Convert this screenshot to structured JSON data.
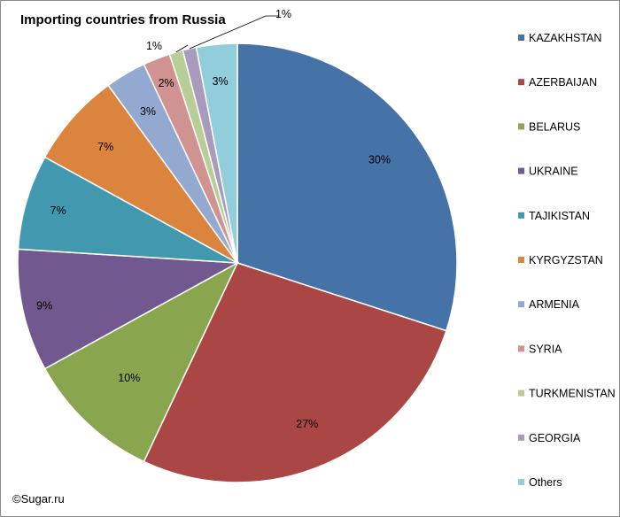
{
  "title": "Importing countries from Russia",
  "copyright": "©Sugar.ru",
  "chart_data": {
    "type": "pie",
    "title": "Importing countries from Russia",
    "legend_position": "right",
    "start_angle": "12 o'clock",
    "direction": "clockwise",
    "slices": [
      {
        "name": "KAZAKHSTAN",
        "value": 30,
        "label": "30%",
        "color": "#4572A7"
      },
      {
        "name": "AZERBAIJAN",
        "value": 27,
        "label": "27%",
        "color": "#AA4643"
      },
      {
        "name": "BELARUS",
        "value": 10,
        "label": "10%",
        "color": "#89A54E"
      },
      {
        "name": "UKRAINE",
        "value": 9,
        "label": "9%",
        "color": "#71588F"
      },
      {
        "name": "TAJIKISTAN",
        "value": 7,
        "label": "7%",
        "color": "#4198AF"
      },
      {
        "name": "KYRGYZSTAN",
        "value": 7,
        "label": "7%",
        "color": "#DB843D"
      },
      {
        "name": "ARMENIA",
        "value": 3,
        "label": "3%",
        "color": "#93A9CF"
      },
      {
        "name": "SYRIA",
        "value": 2,
        "label": "2%",
        "color": "#D19392"
      },
      {
        "name": "TURKMENISTAN",
        "value": 1,
        "label": "1%",
        "color": "#B9CD96"
      },
      {
        "name": "GEORGIA",
        "value": 1,
        "label": "1%",
        "color": "#A99BBD"
      },
      {
        "name": "Others",
        "value": 3,
        "label": "3%",
        "color": "#92CDDC"
      }
    ]
  }
}
